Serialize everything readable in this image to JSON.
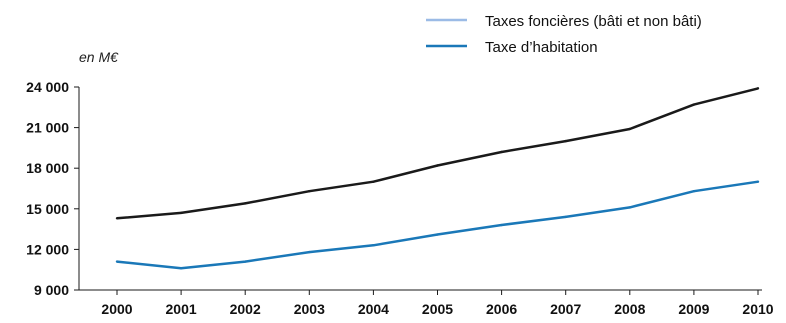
{
  "chart_data": {
    "type": "line",
    "unit_label": "en M€",
    "x": [
      "2000",
      "2001",
      "2002",
      "2003",
      "2004",
      "2005",
      "2006",
      "2007",
      "2008",
      "2009",
      "2010"
    ],
    "y_ticks": [
      "24 000",
      "21 000",
      "18 000",
      "15 000",
      "12 000",
      "9 000"
    ],
    "y_tick_values": [
      24000,
      21000,
      18000,
      15000,
      12000,
      9000
    ],
    "ylim": [
      9000,
      24000
    ],
    "grid": false,
    "legend_position": "top-right",
    "legend": [
      {
        "label": "Taxes foncières (bâti et non bâti)",
        "color": "#9bbbe6"
      },
      {
        "label": "Taxe d’habitation",
        "color": "#1a78b8"
      }
    ],
    "series": [
      {
        "color": "#1a1a1a",
        "values": [
          14300,
          14700,
          15400,
          16300,
          17000,
          18200,
          19200,
          20000,
          20900,
          22700,
          23900
        ]
      },
      {
        "color": "#1a78b8",
        "values": [
          11100,
          10600,
          11100,
          11800,
          12300,
          13100,
          13800,
          14400,
          15100,
          16300,
          17000
        ]
      }
    ]
  }
}
